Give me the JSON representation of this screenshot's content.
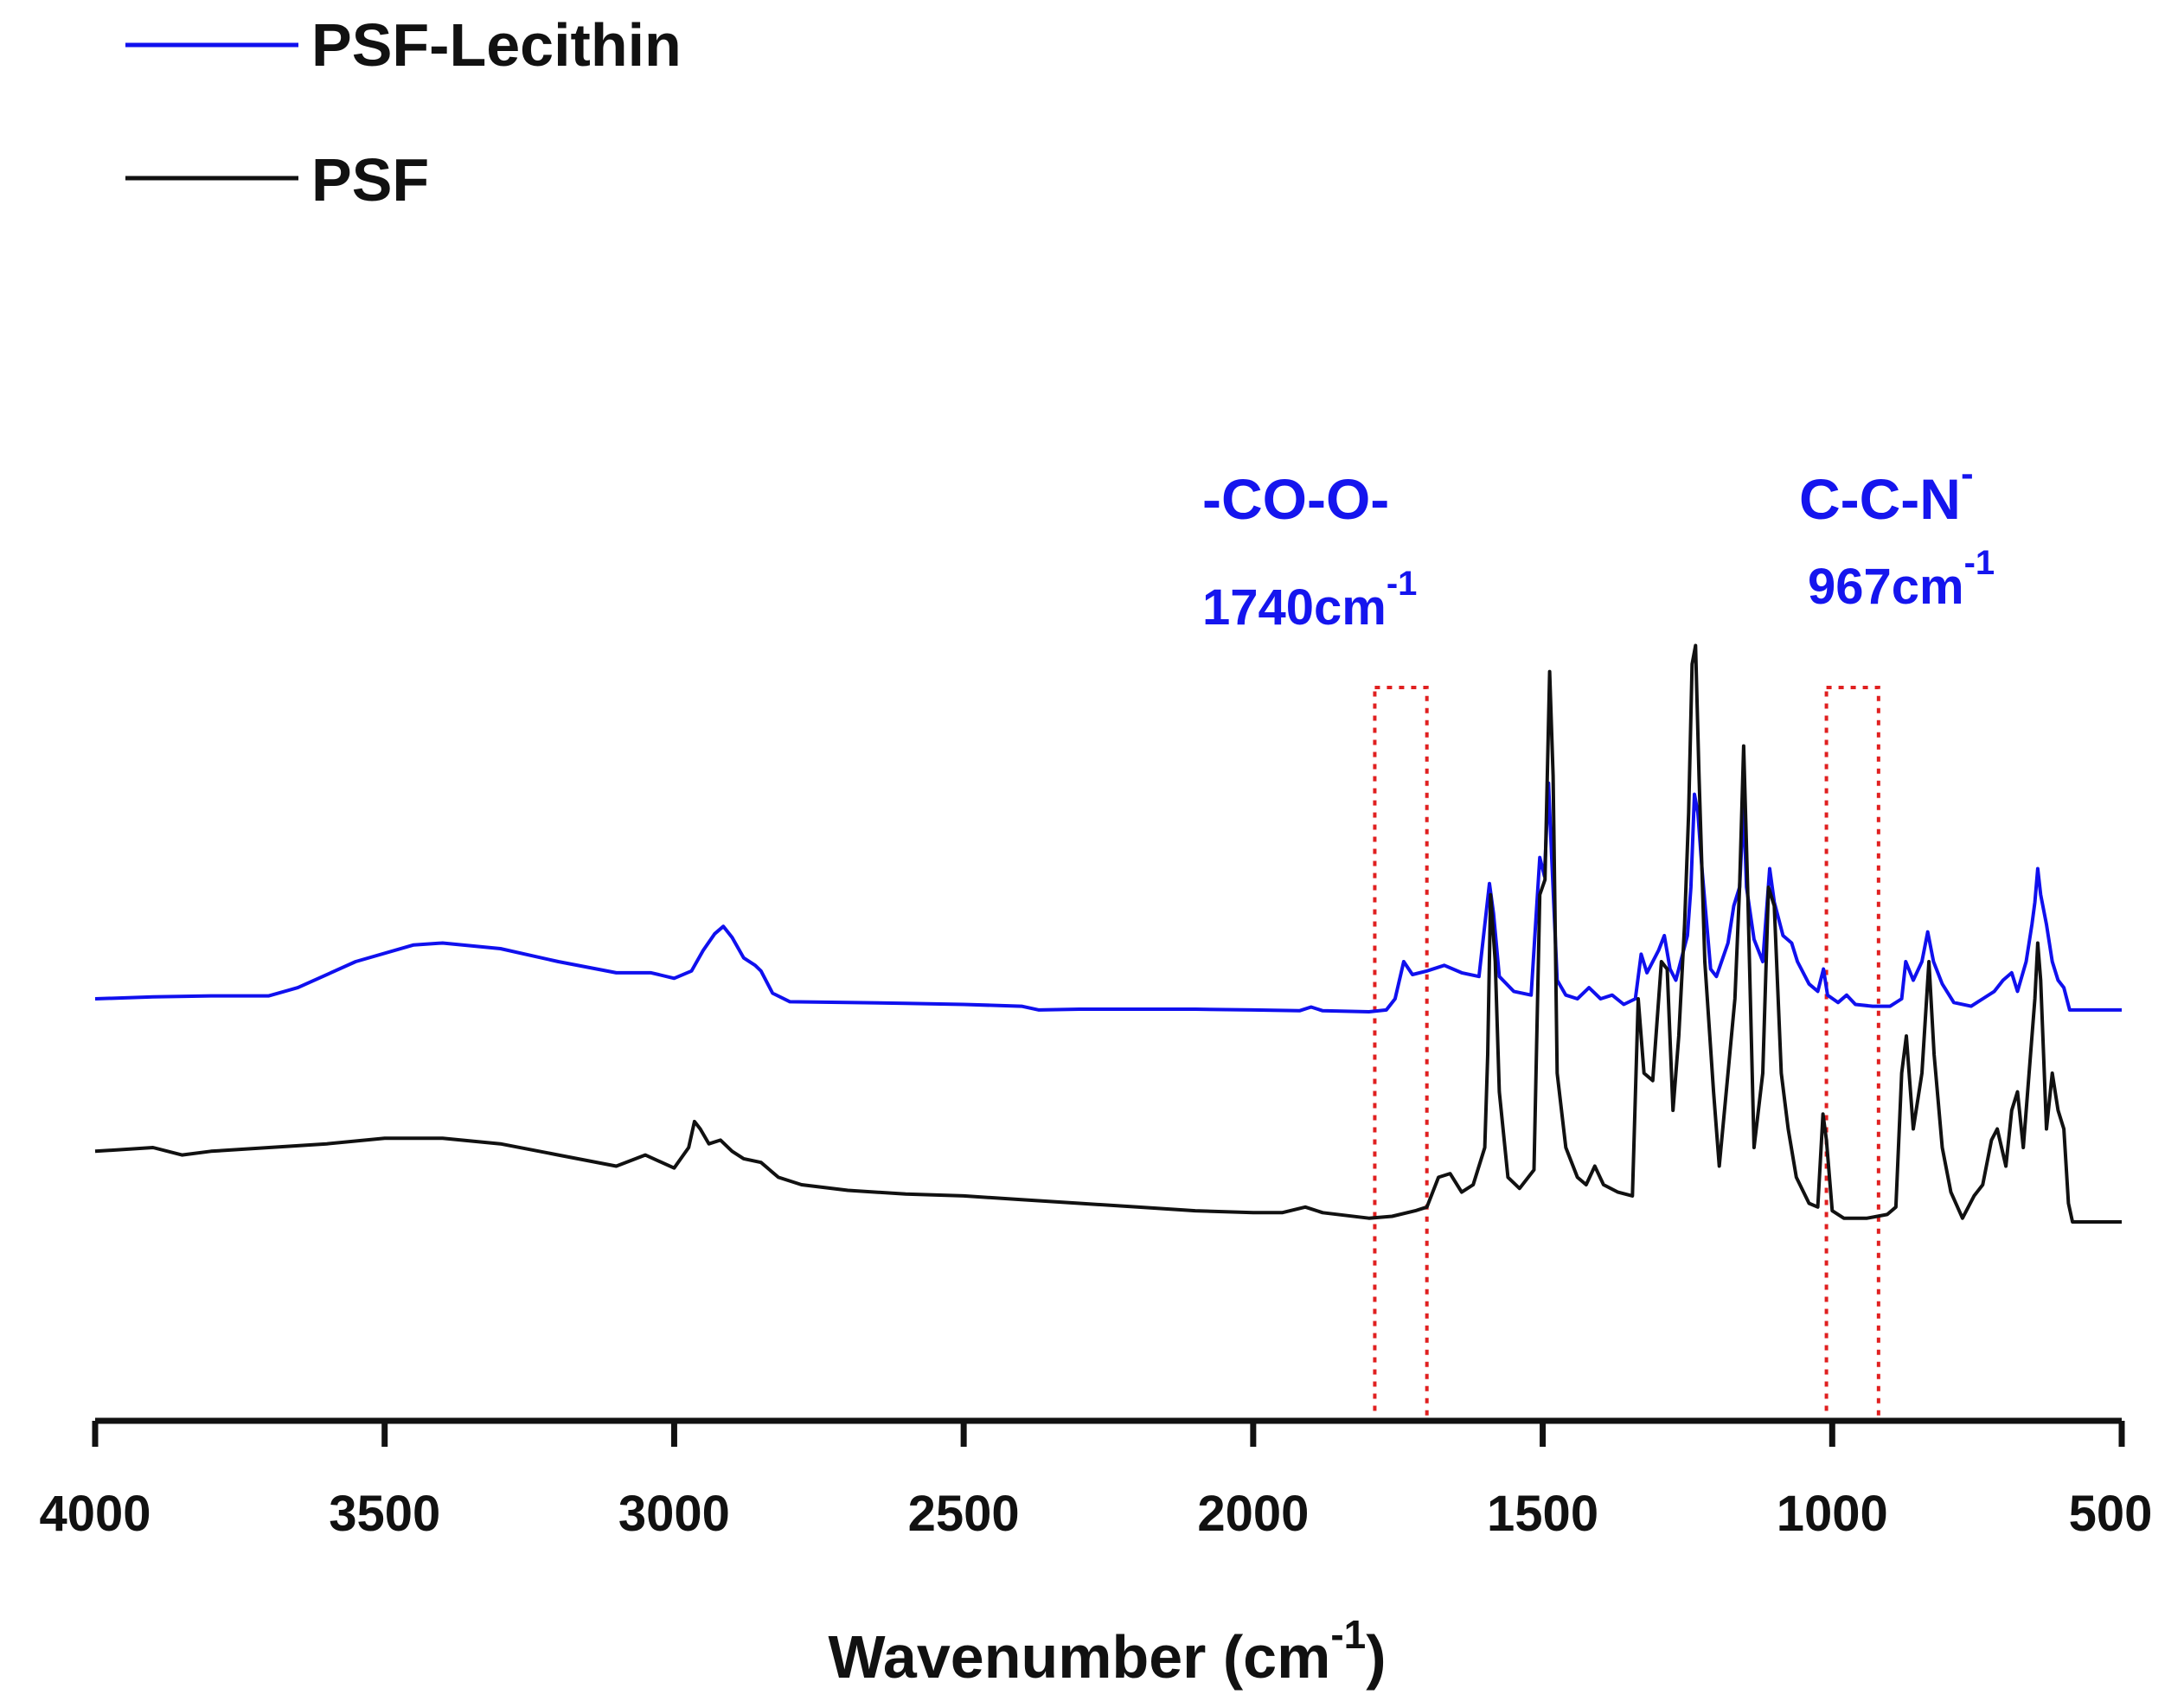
{
  "chart_data": {
    "type": "line",
    "title": "",
    "xlabel": "Wavenumber (cm",
    "xlabel_sup": "-1",
    "xlabel_close": ")",
    "ylabel": "",
    "xlim": [
      4000,
      500
    ],
    "x_reversed": true,
    "xticks": [
      4000,
      3500,
      3000,
      2500,
      2000,
      1500,
      1000,
      500
    ],
    "y_axis_shown": false,
    "grid": false,
    "legend_position": "top-left",
    "series": [
      {
        "name": "PSF-Lecithin",
        "color": "#1010ee",
        "points": [
          [
            4000,
            0.1
          ],
          [
            3900,
            0.105
          ],
          [
            3800,
            0.108
          ],
          [
            3700,
            0.108
          ],
          [
            3650,
            0.13
          ],
          [
            3550,
            0.2
          ],
          [
            3450,
            0.245
          ],
          [
            3400,
            0.25
          ],
          [
            3300,
            0.235
          ],
          [
            3200,
            0.2
          ],
          [
            3100,
            0.17
          ],
          [
            3040,
            0.17
          ],
          [
            3000,
            0.155
          ],
          [
            2970,
            0.175
          ],
          [
            2950,
            0.23
          ],
          [
            2930,
            0.275
          ],
          [
            2915,
            0.295
          ],
          [
            2900,
            0.265
          ],
          [
            2880,
            0.21
          ],
          [
            2860,
            0.19
          ],
          [
            2850,
            0.175
          ],
          [
            2830,
            0.115
          ],
          [
            2800,
            0.092
          ],
          [
            2700,
            0.09
          ],
          [
            2600,
            0.088
          ],
          [
            2500,
            0.085
          ],
          [
            2400,
            0.08
          ],
          [
            2370,
            0.07
          ],
          [
            2300,
            0.072
          ],
          [
            2200,
            0.072
          ],
          [
            2100,
            0.072
          ],
          [
            2000,
            0.07
          ],
          [
            1920,
            0.068
          ],
          [
            1900,
            0.078
          ],
          [
            1880,
            0.068
          ],
          [
            1800,
            0.065
          ],
          [
            1770,
            0.07
          ],
          [
            1755,
            0.1
          ],
          [
            1740,
            0.2
          ],
          [
            1725,
            0.165
          ],
          [
            1700,
            0.175
          ],
          [
            1670,
            0.19
          ],
          [
            1640,
            0.17
          ],
          [
            1610,
            0.16
          ],
          [
            1592,
            0.41
          ],
          [
            1585,
            0.33
          ],
          [
            1575,
            0.16
          ],
          [
            1550,
            0.12
          ],
          [
            1520,
            0.11
          ],
          [
            1505,
            0.48
          ],
          [
            1497,
            0.43
          ],
          [
            1490,
            0.68
          ],
          [
            1485,
            0.5
          ],
          [
            1475,
            0.15
          ],
          [
            1460,
            0.11
          ],
          [
            1440,
            0.1
          ],
          [
            1420,
            0.13
          ],
          [
            1400,
            0.1
          ],
          [
            1380,
            0.11
          ],
          [
            1360,
            0.085
          ],
          [
            1340,
            0.1
          ],
          [
            1330,
            0.22
          ],
          [
            1320,
            0.17
          ],
          [
            1300,
            0.23
          ],
          [
            1290,
            0.27
          ],
          [
            1280,
            0.18
          ],
          [
            1270,
            0.15
          ],
          [
            1250,
            0.27
          ],
          [
            1244,
            0.4
          ],
          [
            1238,
            0.65
          ],
          [
            1232,
            0.6
          ],
          [
            1225,
            0.45
          ],
          [
            1210,
            0.18
          ],
          [
            1200,
            0.16
          ],
          [
            1180,
            0.25
          ],
          [
            1170,
            0.35
          ],
          [
            1160,
            0.4
          ],
          [
            1153,
            0.62
          ],
          [
            1148,
            0.4
          ],
          [
            1135,
            0.26
          ],
          [
            1120,
            0.2
          ],
          [
            1108,
            0.45
          ],
          [
            1100,
            0.36
          ],
          [
            1085,
            0.27
          ],
          [
            1070,
            0.25
          ],
          [
            1060,
            0.2
          ],
          [
            1040,
            0.14
          ],
          [
            1025,
            0.12
          ],
          [
            1015,
            0.18
          ],
          [
            1008,
            0.11
          ],
          [
            990,
            0.09
          ],
          [
            975,
            0.11
          ],
          [
            960,
            0.085
          ],
          [
            930,
            0.08
          ],
          [
            900,
            0.08
          ],
          [
            880,
            0.1
          ],
          [
            873,
            0.2
          ],
          [
            860,
            0.15
          ],
          [
            845,
            0.2
          ],
          [
            835,
            0.28
          ],
          [
            825,
            0.2
          ],
          [
            810,
            0.14
          ],
          [
            790,
            0.09
          ],
          [
            760,
            0.08
          ],
          [
            740,
            0.1
          ],
          [
            720,
            0.12
          ],
          [
            705,
            0.15
          ],
          [
            690,
            0.17
          ],
          [
            680,
            0.12
          ],
          [
            665,
            0.2
          ],
          [
            655,
            0.3
          ],
          [
            650,
            0.36
          ],
          [
            645,
            0.45
          ],
          [
            640,
            0.38
          ],
          [
            630,
            0.3
          ],
          [
            620,
            0.2
          ],
          [
            610,
            0.15
          ],
          [
            600,
            0.13
          ],
          [
            590,
            0.07
          ],
          [
            560,
            0.07
          ],
          [
            500,
            0.07
          ]
        ]
      },
      {
        "name": "PSF",
        "color": "#111111",
        "points": [
          [
            4000,
            -0.31
          ],
          [
            3900,
            -0.3
          ],
          [
            3850,
            -0.32
          ],
          [
            3800,
            -0.31
          ],
          [
            3700,
            -0.3
          ],
          [
            3600,
            -0.29
          ],
          [
            3500,
            -0.275
          ],
          [
            3400,
            -0.275
          ],
          [
            3300,
            -0.29
          ],
          [
            3200,
            -0.32
          ],
          [
            3100,
            -0.35
          ],
          [
            3050,
            -0.32
          ],
          [
            3000,
            -0.355
          ],
          [
            2975,
            -0.3
          ],
          [
            2965,
            -0.23
          ],
          [
            2955,
            -0.25
          ],
          [
            2940,
            -0.29
          ],
          [
            2920,
            -0.28
          ],
          [
            2900,
            -0.31
          ],
          [
            2880,
            -0.33
          ],
          [
            2850,
            -0.34
          ],
          [
            2820,
            -0.38
          ],
          [
            2780,
            -0.4
          ],
          [
            2700,
            -0.415
          ],
          [
            2600,
            -0.425
          ],
          [
            2500,
            -0.43
          ],
          [
            2400,
            -0.44
          ],
          [
            2300,
            -0.45
          ],
          [
            2200,
            -0.46
          ],
          [
            2100,
            -0.47
          ],
          [
            2000,
            -0.475
          ],
          [
            1950,
            -0.475
          ],
          [
            1910,
            -0.46
          ],
          [
            1880,
            -0.475
          ],
          [
            1800,
            -0.49
          ],
          [
            1760,
            -0.485
          ],
          [
            1720,
            -0.47
          ],
          [
            1700,
            -0.46
          ],
          [
            1680,
            -0.38
          ],
          [
            1660,
            -0.37
          ],
          [
            1640,
            -0.42
          ],
          [
            1620,
            -0.4
          ],
          [
            1600,
            -0.3
          ],
          [
            1595,
            -0.05
          ],
          [
            1590,
            0.38
          ],
          [
            1582,
            0.2
          ],
          [
            1575,
            -0.15
          ],
          [
            1560,
            -0.38
          ],
          [
            1540,
            -0.41
          ],
          [
            1515,
            -0.36
          ],
          [
            1505,
            0.38
          ],
          [
            1496,
            0.42
          ],
          [
            1488,
            0.98
          ],
          [
            1482,
            0.7
          ],
          [
            1475,
            -0.1
          ],
          [
            1460,
            -0.3
          ],
          [
            1440,
            -0.38
          ],
          [
            1425,
            -0.4
          ],
          [
            1410,
            -0.35
          ],
          [
            1395,
            -0.4
          ],
          [
            1370,
            -0.42
          ],
          [
            1345,
            -0.43
          ],
          [
            1335,
            0.1
          ],
          [
            1325,
            -0.1
          ],
          [
            1310,
            -0.12
          ],
          [
            1295,
            0.2
          ],
          [
            1285,
            0.18
          ],
          [
            1275,
            -0.2
          ],
          [
            1265,
            0.0
          ],
          [
            1255,
            0.3
          ],
          [
            1248,
            0.6
          ],
          [
            1242,
            1.0
          ],
          [
            1236,
            1.05
          ],
          [
            1230,
            0.7
          ],
          [
            1220,
            0.2
          ],
          [
            1205,
            -0.15
          ],
          [
            1195,
            -0.35
          ],
          [
            1180,
            -0.1
          ],
          [
            1168,
            0.1
          ],
          [
            1160,
            0.4
          ],
          [
            1153,
            0.78
          ],
          [
            1146,
            0.4
          ],
          [
            1135,
            -0.3
          ],
          [
            1120,
            -0.1
          ],
          [
            1110,
            0.4
          ],
          [
            1100,
            0.35
          ],
          [
            1088,
            -0.1
          ],
          [
            1076,
            -0.25
          ],
          [
            1062,
            -0.38
          ],
          [
            1040,
            -0.45
          ],
          [
            1025,
            -0.46
          ],
          [
            1016,
            -0.21
          ],
          [
            1010,
            -0.28
          ],
          [
            1000,
            -0.47
          ],
          [
            980,
            -0.49
          ],
          [
            940,
            -0.49
          ],
          [
            905,
            -0.48
          ],
          [
            890,
            -0.46
          ],
          [
            880,
            -0.1
          ],
          [
            872,
            0.0
          ],
          [
            860,
            -0.25
          ],
          [
            845,
            -0.1
          ],
          [
            833,
            0.2
          ],
          [
            824,
            -0.05
          ],
          [
            810,
            -0.3
          ],
          [
            795,
            -0.42
          ],
          [
            775,
            -0.49
          ],
          [
            755,
            -0.43
          ],
          [
            740,
            -0.4
          ],
          [
            725,
            -0.28
          ],
          [
            715,
            -0.25
          ],
          [
            700,
            -0.35
          ],
          [
            690,
            -0.2
          ],
          [
            680,
            -0.15
          ],
          [
            670,
            -0.3
          ],
          [
            660,
            -0.1
          ],
          [
            650,
            0.1
          ],
          [
            645,
            0.25
          ],
          [
            640,
            0.15
          ],
          [
            630,
            -0.25
          ],
          [
            620,
            -0.1
          ],
          [
            610,
            -0.2
          ],
          [
            600,
            -0.25
          ],
          [
            592,
            -0.45
          ],
          [
            585,
            -0.5
          ],
          [
            500,
            -0.5
          ]
        ]
      }
    ],
    "annotations": [
      {
        "label": "-CO-O-",
        "wavenumber_text": "1740cm",
        "wavenumber_sup": "-1",
        "color": "#1515ee",
        "box_range": [
          1790,
          1700
        ]
      },
      {
        "label": "C-C-N",
        "label_sup": "-",
        "wavenumber_text": "967cm",
        "wavenumber_sup": "-1",
        "color": "#1515ee",
        "box_range": [
          1010,
          920
        ]
      }
    ],
    "highlight_box_color": "#e02020"
  }
}
